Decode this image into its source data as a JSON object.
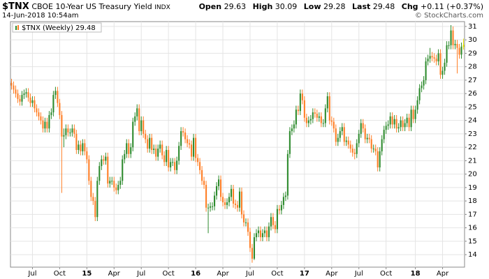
{
  "header": {
    "symbol": "$TNX",
    "name": "CBOE 10-Year US Treasury Yield",
    "exchange": "INDX",
    "timestamp": "14-Jun-2018 10:54am",
    "quote": [
      {
        "label": "Open",
        "value": "29.63"
      },
      {
        "label": "High",
        "value": "30.09"
      },
      {
        "label": "Low",
        "value": "29.28"
      },
      {
        "label": "Last",
        "value": "29.48"
      },
      {
        "label": "Chg",
        "value": "+0.11 (+0.37%)"
      }
    ],
    "credit": "© StockCharts.com"
  },
  "chart_data": {
    "type": "candlestick",
    "legend": "top-left",
    "grid": true,
    "y_axis_side": "right",
    "series": [
      {
        "name": "$TNX (Weekly)",
        "last": "29.48",
        "up_color": "#2e8b2e",
        "down_color": "#ff7f27",
        "last_bar_color": "#e6e600",
        "open": [
          26.8,
          26.6,
          26.3,
          26.0,
          25.6,
          25.4,
          25.9,
          26.0,
          26.1,
          25.7,
          25.3,
          25.5,
          24.9,
          24.6,
          24.3,
          24.0,
          23.4,
          23.9,
          23.4,
          24.4,
          24.6,
          25.9,
          26.2,
          25.3,
          24.4,
          22.8,
          22.9,
          23.4,
          23.1,
          23.1,
          23.4,
          23.0,
          21.8,
          22.2,
          21.7,
          22.3,
          21.7,
          21.1,
          19.5,
          18.3,
          18.0,
          16.8,
          19.5,
          20.6,
          21.1,
          21.0,
          21.3,
          19.3,
          19.5,
          19.5,
          19.0,
          18.8,
          19.2,
          19.5,
          21.1,
          21.5,
          22.3,
          21.5,
          22.0,
          23.9,
          24.3,
          24.9,
          23.2,
          24.0,
          23.0,
          22.6,
          21.9,
          22.7,
          21.8,
          21.9,
          21.3,
          21.9,
          22.2,
          21.4,
          20.9,
          21.8,
          20.5,
          20.9,
          20.9,
          20.3,
          21.0,
          22.1,
          23.2,
          23.1,
          22.6,
          22.3,
          22.2,
          21.3,
          22.7,
          21.2,
          20.9,
          20.3,
          19.5,
          19.2,
          17.5,
          17.5,
          17.6,
          17.6,
          18.4,
          19.1,
          19.6,
          18.3,
          17.9,
          17.7,
          17.9,
          18.3,
          18.9,
          17.8,
          17.7,
          17.5,
          18.7,
          17.0,
          16.4,
          16.4,
          15.7,
          14.5,
          13.7,
          15.3,
          15.6,
          15.8,
          15.3,
          15.6,
          15.8,
          15.3,
          16.1,
          16.8,
          16.2,
          15.9,
          17.4,
          17.3,
          17.7,
          18.3,
          18.4,
          21.5,
          23.2,
          23.4,
          23.7,
          24.8,
          24.7,
          26.0,
          25.5,
          24.2,
          23.8,
          24.0,
          24.1,
          24.6,
          24.5,
          24.2,
          24.3,
          23.8,
          23.8,
          24.9,
          25.8,
          24.0,
          23.9,
          23.4,
          22.4,
          22.7,
          23.2,
          23.5,
          22.4,
          22.5,
          22.2,
          21.9,
          21.6,
          21.5,
          22.3,
          23.0,
          23.8,
          23.4,
          22.6,
          22.7,
          22.6,
          21.9,
          21.9,
          21.7,
          20.5,
          21.7,
          22.6,
          23.3,
          23.6,
          23.7,
          24.3,
          23.7,
          24.1,
          23.4,
          23.5,
          24.0,
          23.5,
          23.8,
          24.2,
          23.5,
          24.8,
          24.1,
          24.8,
          25.5,
          26.4,
          26.6,
          27.0,
          28.4,
          28.6,
          28.8,
          28.7,
          28.6,
          28.4,
          29.0,
          27.4,
          27.7,
          28.3,
          29.6,
          29.6,
          30.7,
          29.6,
          29.7,
          29.4,
          28.9,
          29.63
        ],
        "high": [
          27.1,
          26.9,
          26.6,
          26.3,
          25.9,
          26.2,
          26.3,
          26.4,
          26.4,
          26.0,
          25.8,
          25.8,
          25.2,
          24.9,
          24.6,
          24.3,
          24.2,
          24.2,
          24.7,
          24.9,
          26.2,
          26.5,
          26.5,
          25.6,
          24.7,
          23.4,
          23.7,
          23.7,
          23.4,
          23.7,
          23.7,
          23.3,
          22.5,
          22.5,
          22.6,
          22.6,
          22.0,
          21.4,
          19.8,
          18.6,
          18.3,
          19.8,
          20.9,
          21.4,
          21.4,
          21.6,
          21.6,
          19.8,
          19.8,
          19.8,
          19.3,
          19.5,
          19.8,
          21.4,
          21.8,
          22.6,
          22.6,
          22.3,
          24.2,
          24.6,
          25.2,
          25.2,
          24.3,
          24.3,
          23.3,
          22.9,
          23.0,
          23.0,
          22.2,
          22.2,
          22.2,
          22.5,
          22.5,
          21.7,
          22.1,
          22.1,
          21.2,
          21.2,
          21.2,
          21.3,
          22.4,
          23.5,
          23.5,
          23.4,
          22.9,
          22.6,
          22.5,
          23.0,
          23.0,
          21.5,
          21.2,
          20.6,
          19.8,
          19.5,
          17.8,
          17.9,
          17.9,
          18.7,
          19.4,
          19.9,
          19.9,
          18.6,
          18.2,
          18.2,
          18.6,
          19.2,
          19.2,
          18.1,
          18.0,
          19.0,
          19.0,
          17.3,
          16.7,
          16.7,
          16.0,
          14.8,
          15.6,
          15.9,
          16.1,
          16.1,
          15.9,
          16.1,
          16.1,
          16.4,
          17.1,
          17.1,
          16.5,
          17.7,
          17.7,
          18.0,
          18.6,
          18.7,
          21.8,
          23.5,
          23.7,
          24.0,
          25.1,
          25.1,
          26.3,
          26.3,
          25.8,
          24.5,
          24.3,
          24.4,
          24.9,
          24.9,
          24.8,
          24.6,
          24.6,
          24.1,
          25.2,
          26.1,
          26.1,
          24.3,
          24.2,
          23.7,
          23.0,
          23.5,
          23.8,
          23.8,
          22.8,
          22.8,
          22.5,
          22.2,
          21.9,
          22.6,
          23.3,
          24.1,
          24.1,
          23.7,
          23.0,
          23.0,
          22.9,
          22.2,
          22.2,
          22.0,
          22.0,
          22.9,
          23.6,
          23.9,
          24.0,
          24.6,
          24.6,
          24.4,
          24.4,
          23.8,
          24.3,
          24.3,
          24.1,
          24.5,
          24.5,
          25.1,
          25.1,
          25.1,
          25.8,
          26.7,
          26.9,
          27.3,
          28.7,
          28.9,
          29.4,
          29.1,
          29.0,
          28.9,
          29.3,
          29.3,
          28.0,
          28.6,
          29.9,
          29.9,
          31.1,
          31.0,
          30.0,
          30.0,
          29.7,
          29.8,
          30.09
        ],
        "low": [
          26.3,
          26.0,
          25.7,
          25.3,
          25.1,
          25.1,
          25.6,
          25.7,
          25.4,
          25.0,
          25.0,
          24.6,
          24.3,
          24.0,
          23.7,
          23.1,
          23.1,
          23.1,
          23.1,
          24.1,
          24.3,
          25.6,
          25.0,
          24.1,
          18.6,
          22.0,
          22.6,
          22.8,
          22.8,
          22.8,
          22.7,
          21.5,
          21.5,
          21.4,
          21.4,
          21.4,
          20.8,
          19.2,
          18.0,
          17.7,
          16.5,
          16.5,
          19.2,
          20.3,
          20.7,
          20.7,
          19.0,
          19.0,
          19.2,
          18.7,
          18.5,
          18.5,
          18.9,
          19.2,
          20.8,
          21.2,
          21.2,
          21.2,
          21.7,
          23.6,
          24.0,
          22.9,
          22.9,
          22.7,
          22.3,
          21.6,
          21.6,
          21.5,
          21.5,
          21.0,
          21.0,
          21.6,
          21.1,
          20.6,
          20.6,
          20.2,
          20.2,
          20.6,
          20.0,
          20.0,
          20.7,
          21.8,
          22.8,
          22.3,
          22.0,
          21.9,
          21.0,
          21.0,
          20.9,
          20.6,
          20.0,
          19.2,
          18.9,
          17.2,
          15.6,
          17.2,
          17.3,
          17.3,
          18.1,
          18.8,
          18.0,
          17.6,
          17.4,
          17.4,
          17.6,
          18.0,
          17.5,
          17.4,
          17.2,
          17.2,
          16.7,
          16.1,
          16.1,
          15.4,
          14.2,
          13.4,
          13.6,
          15.0,
          15.3,
          15.0,
          15.0,
          15.3,
          15.0,
          15.0,
          15.8,
          15.9,
          15.6,
          15.6,
          17.0,
          17.0,
          17.4,
          18.0,
          18.1,
          21.2,
          22.9,
          23.1,
          23.4,
          24.4,
          24.4,
          25.2,
          23.9,
          23.5,
          23.5,
          23.7,
          23.8,
          24.2,
          23.9,
          23.9,
          23.5,
          23.5,
          23.5,
          24.6,
          23.7,
          23.6,
          23.1,
          22.1,
          22.1,
          22.4,
          22.9,
          22.1,
          22.1,
          21.9,
          21.6,
          21.3,
          21.1,
          21.2,
          22.0,
          22.7,
          23.1,
          22.3,
          22.3,
          22.3,
          21.6,
          21.6,
          21.4,
          20.2,
          20.2,
          21.4,
          22.3,
          23.0,
          23.3,
          23.4,
          23.4,
          23.4,
          23.1,
          23.1,
          23.2,
          23.2,
          23.2,
          23.5,
          23.2,
          23.2,
          23.8,
          23.8,
          24.5,
          25.2,
          26.1,
          26.3,
          26.7,
          28.1,
          28.3,
          28.4,
          28.3,
          28.1,
          28.1,
          27.1,
          27.1,
          27.4,
          28.0,
          29.3,
          29.3,
          29.3,
          29.3,
          27.5,
          28.6,
          28.6,
          29.28
        ],
        "close": [
          26.6,
          26.3,
          26.0,
          25.6,
          25.4,
          25.9,
          26.0,
          26.1,
          25.7,
          25.3,
          25.5,
          24.9,
          24.6,
          24.3,
          24.0,
          23.4,
          23.9,
          23.4,
          24.4,
          24.6,
          25.9,
          26.2,
          25.3,
          24.4,
          22.8,
          22.9,
          23.4,
          23.1,
          23.1,
          23.4,
          23.0,
          21.8,
          22.2,
          21.7,
          22.3,
          21.7,
          21.1,
          19.5,
          18.3,
          18.0,
          16.8,
          19.5,
          20.6,
          21.1,
          21.0,
          21.3,
          19.3,
          19.5,
          19.5,
          19.0,
          18.8,
          19.2,
          19.5,
          21.1,
          21.5,
          22.3,
          21.5,
          22.0,
          23.9,
          24.3,
          24.9,
          23.2,
          24.0,
          23.0,
          22.6,
          21.9,
          22.7,
          21.8,
          21.9,
          21.3,
          21.9,
          22.2,
          21.4,
          20.9,
          21.8,
          20.5,
          20.9,
          20.9,
          20.3,
          21.0,
          22.1,
          23.2,
          23.1,
          22.6,
          22.3,
          22.2,
          21.3,
          22.7,
          21.2,
          20.9,
          20.3,
          19.5,
          19.2,
          17.5,
          17.5,
          17.6,
          17.6,
          18.4,
          19.1,
          19.6,
          18.3,
          17.9,
          17.7,
          17.9,
          18.3,
          18.9,
          17.8,
          17.7,
          17.5,
          18.7,
          17.0,
          16.4,
          16.4,
          15.7,
          14.5,
          13.7,
          15.3,
          15.6,
          15.8,
          15.3,
          15.6,
          15.8,
          15.3,
          16.1,
          16.8,
          16.2,
          15.9,
          17.4,
          17.3,
          17.7,
          18.3,
          18.4,
          21.5,
          23.2,
          23.4,
          23.7,
          24.8,
          24.7,
          26.0,
          25.5,
          24.2,
          23.8,
          24.0,
          24.1,
          24.6,
          24.5,
          24.2,
          24.3,
          23.8,
          23.8,
          24.9,
          25.8,
          24.0,
          23.9,
          23.4,
          22.4,
          22.7,
          23.2,
          23.5,
          22.4,
          22.5,
          22.2,
          21.9,
          21.6,
          21.5,
          22.3,
          23.0,
          23.8,
          23.4,
          22.6,
          22.7,
          22.6,
          21.9,
          21.9,
          21.7,
          20.5,
          21.7,
          22.6,
          23.3,
          23.6,
          23.7,
          24.3,
          23.7,
          24.1,
          23.4,
          23.5,
          24.0,
          23.5,
          23.8,
          24.2,
          23.5,
          24.8,
          24.1,
          24.8,
          25.5,
          26.4,
          26.6,
          27.0,
          28.4,
          28.6,
          28.8,
          28.7,
          28.6,
          28.4,
          29.0,
          27.4,
          27.7,
          28.3,
          29.6,
          29.6,
          30.7,
          29.6,
          29.7,
          29.4,
          28.9,
          29.5,
          29.48
        ]
      }
    ],
    "xlim": [
      -0.5,
      216.5
    ],
    "xticks": [
      {
        "value": 10,
        "label": "Jul"
      },
      {
        "value": 23,
        "label": "Oct"
      },
      {
        "value": 36,
        "label": "15"
      },
      {
        "value": 49,
        "label": "Apr"
      },
      {
        "value": 62,
        "label": "Jul"
      },
      {
        "value": 75,
        "label": "Oct"
      },
      {
        "value": 88,
        "label": "16"
      },
      {
        "value": 101,
        "label": "Apr"
      },
      {
        "value": 114,
        "label": "Jul"
      },
      {
        "value": 127,
        "label": "Oct"
      },
      {
        "value": 140,
        "label": "17"
      },
      {
        "value": 153,
        "label": "Apr"
      },
      {
        "value": 166,
        "label": "Jul"
      },
      {
        "value": 179,
        "label": "Oct"
      },
      {
        "value": 193,
        "label": "18"
      },
      {
        "value": 206,
        "label": "Apr"
      }
    ],
    "ylim": [
      13.07,
      31.36
    ],
    "yticks": [
      14,
      15,
      16,
      17,
      18,
      19,
      20,
      21,
      22,
      23,
      24,
      25,
      26,
      27,
      28,
      29,
      30,
      31
    ]
  }
}
